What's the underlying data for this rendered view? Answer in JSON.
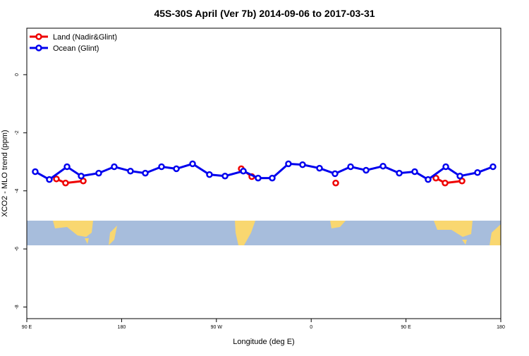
{
  "chart_data": {
    "type": "line",
    "title": "45S-30S April (Ver 7b)   2014-09-06 to 2017-03-31",
    "xlabel": "Longitude (deg E)",
    "ylabel": "XCO2 - MLO trend (ppm)",
    "xlim": [
      90,
      540
    ],
    "ylim": [
      -8.4,
      1.6
    ],
    "xticks": [
      {
        "value": 90,
        "label": "90 E"
      },
      {
        "value": 180,
        "label": "180"
      },
      {
        "value": 270,
        "label": "90 W"
      },
      {
        "value": 360,
        "label": "0"
      },
      {
        "value": 450,
        "label": "90 E"
      },
      {
        "value": 540,
        "label": "180"
      }
    ],
    "yticks": [
      0,
      -2,
      -4,
      -6,
      -8
    ],
    "legend": "top-left",
    "series": [
      {
        "name": "Land (Nadir&Glint)",
        "color": "#ee0000",
        "x": [
          118.1,
          126.8,
          143.6,
          null,
          293.6,
          303.6,
          null,
          383.3,
          null,
          478.4,
          487.1,
          503.2
        ],
        "values": [
          -3.59,
          -3.73,
          -3.66,
          null,
          -3.24,
          -3.51,
          null,
          -3.73,
          null,
          -3.56,
          -3.73,
          -3.66
        ]
      },
      {
        "name": "Ocean (Glint)",
        "color": "#0000ee",
        "x": [
          98,
          111.4,
          128.2,
          141.6,
          158.3,
          173,
          188.4,
          202.5,
          217.9,
          232,
          247.4,
          263.4,
          278.2,
          295.6,
          309.6,
          323,
          338.4,
          351.8,
          367.9,
          382.6,
          397.4,
          412.1,
          428.2,
          443.6,
          458.3,
          471,
          487.8,
          501.2,
          517.9,
          532.6
        ],
        "values": [
          -3.34,
          -3.61,
          -3.17,
          -3.49,
          -3.39,
          -3.17,
          -3.32,
          -3.39,
          -3.17,
          -3.24,
          -3.07,
          -3.44,
          -3.49,
          -3.32,
          -3.56,
          -3.56,
          -3.07,
          -3.1,
          -3.22,
          -3.41,
          -3.17,
          -3.29,
          -3.15,
          -3.39,
          -3.34,
          -3.61,
          -3.17,
          -3.49,
          -3.37,
          -3.17
        ]
      }
    ]
  }
}
